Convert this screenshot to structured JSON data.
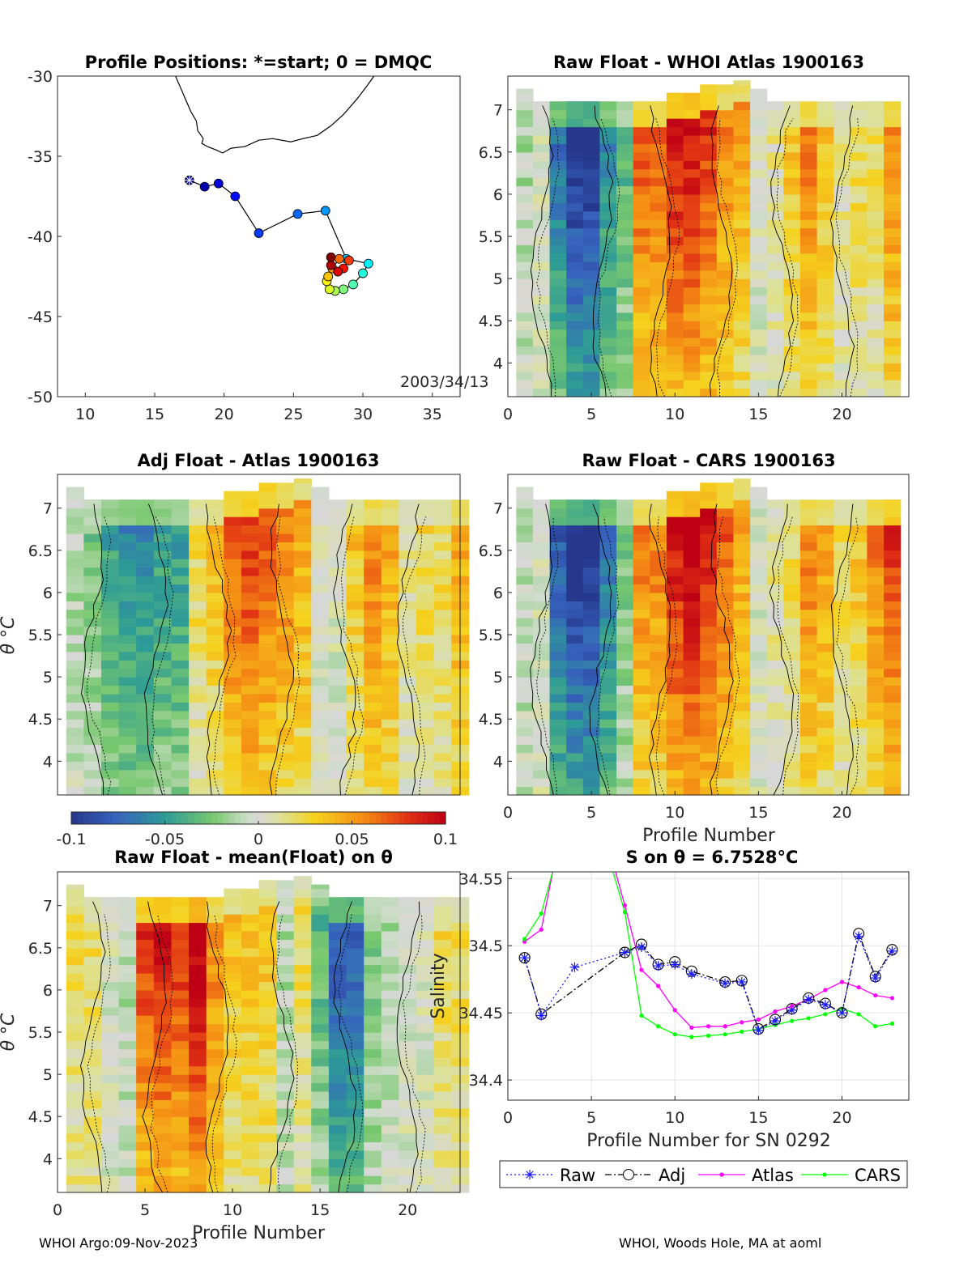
{
  "colors": {
    "raw": "#1a1aff",
    "adj": "#000000",
    "atlas": "#ff00ff",
    "cars": "#00ff00",
    "land": "#000000",
    "grid": "#e3e3e3"
  },
  "footer": {
    "left": "WHOI Argo:09-Nov-2023",
    "right": "WHOI, Woods Hole, MA at aoml"
  },
  "chart_data": [
    {
      "id": "positions",
      "type": "scatter",
      "title": "Profile Positions: *=start; 0 = DMQC",
      "annotation": "2003/34/13",
      "xlim": [
        8,
        37
      ],
      "ylim": [
        -50,
        -30
      ],
      "xticks": [
        "10",
        "15",
        "20",
        "25",
        "30",
        "35"
      ],
      "yticks": [
        "-30",
        "-35",
        "-40",
        "-45",
        "-50"
      ],
      "coast": [
        [
          16.5,
          -30
        ],
        [
          16.9,
          -30.8
        ],
        [
          17.3,
          -31.6
        ],
        [
          17.6,
          -32.2
        ],
        [
          18.0,
          -32.8
        ],
        [
          18.1,
          -33.4
        ],
        [
          18.5,
          -33.9
        ],
        [
          18.4,
          -34.2
        ],
        [
          18.8,
          -34.4
        ],
        [
          19.4,
          -34.6
        ],
        [
          19.9,
          -34.8
        ],
        [
          20.5,
          -34.5
        ],
        [
          21.5,
          -34.4
        ],
        [
          22.5,
          -34.0
        ],
        [
          23.5,
          -33.9
        ],
        [
          24.8,
          -34.1
        ],
        [
          25.7,
          -33.9
        ],
        [
          26.7,
          -33.7
        ],
        [
          27.7,
          -33.1
        ],
        [
          28.6,
          -32.4
        ],
        [
          29.6,
          -31.4
        ],
        [
          30.3,
          -30.6
        ],
        [
          30.8,
          -30
        ]
      ],
      "lon": [
        17.5,
        18.6,
        19.6,
        20.8,
        22.5,
        25.3,
        27.3,
        28.8,
        30.4,
        30.0,
        29.3,
        28.6,
        28.0,
        27.6,
        27.4,
        27.5,
        27.8,
        28.3,
        29.0,
        28.6,
        28.2,
        27.7,
        27.7
      ],
      "lat": [
        -36.5,
        -36.9,
        -36.7,
        -37.5,
        -39.8,
        -38.6,
        -38.4,
        -41.4,
        -41.7,
        -42.3,
        -43.0,
        -43.3,
        -43.4,
        -43.3,
        -42.8,
        -42.5,
        -42.0,
        -41.4,
        -41.5,
        -42.0,
        -42.2,
        -41.8,
        -41.3
      ],
      "start_marker": "*"
    },
    {
      "id": "raw_whoi",
      "type": "heatmap",
      "title": "Raw Float - WHOI Atlas  1900163",
      "xlim": [
        0,
        24
      ],
      "ylim": [
        3.6,
        7.4
      ],
      "xticks": [
        "0",
        "5",
        "10",
        "15",
        "20"
      ],
      "yticks": [
        "7",
        "6.5",
        "6",
        "5.5",
        "5",
        "4.5",
        "4"
      ],
      "xlabel": "",
      "ylabel": "",
      "seed": 11,
      "profiles_top": [
        7.25,
        7.1,
        7.1,
        7.1,
        7.1,
        7.1,
        7.1,
        7.1,
        7.1,
        7.2,
        7.2,
        7.3,
        7.3,
        7.35,
        7.25,
        7.1,
        7.1,
        7.1,
        7.1,
        7.1,
        7.1,
        7.1,
        7.1
      ],
      "profile_bias": [
        -0.01,
        0.0,
        -0.06,
        -0.09,
        -0.09,
        -0.05,
        -0.03,
        0.06,
        0.06,
        0.08,
        0.08,
        0.07,
        0.05,
        0.04,
        0.0,
        0.01,
        0.03,
        0.05,
        0.03,
        0.01,
        0.02,
        0.02,
        0.05
      ]
    },
    {
      "id": "adj_atlas",
      "type": "heatmap",
      "title": "Adj Float - Atlas  1900163",
      "xlim": [
        0,
        23
      ],
      "ylim": [
        3.6,
        7.4
      ],
      "xticks": [],
      "yticks": [
        "7",
        "6.5",
        "6",
        "5.5",
        "5",
        "4.5",
        "4"
      ],
      "xlabel": "",
      "ylabel": "θ °C",
      "seed": 23,
      "profiles_top": [
        7.25,
        7.1,
        7.1,
        7.1,
        7.1,
        7.1,
        7.1,
        7.1,
        7.1,
        7.2,
        7.2,
        7.3,
        7.3,
        7.35,
        7.25,
        7.1,
        7.1,
        7.1,
        7.1,
        7.1,
        7.1,
        7.1,
        7.1
      ],
      "profile_bias": [
        -0.01,
        -0.02,
        -0.04,
        -0.05,
        -0.05,
        -0.04,
        -0.04,
        0.02,
        0.03,
        0.06,
        0.07,
        0.06,
        0.05,
        0.04,
        0.0,
        0.0,
        0.03,
        0.05,
        0.04,
        0.01,
        0.02,
        0.02,
        0.04
      ]
    },
    {
      "id": "raw_cars",
      "type": "heatmap",
      "title": "Raw Float - CARS  1900163",
      "xlim": [
        0,
        24
      ],
      "ylim": [
        3.6,
        7.4
      ],
      "xticks": [
        "0",
        "5",
        "10",
        "15",
        "20"
      ],
      "yticks": [
        "7",
        "6.5",
        "6",
        "5.5",
        "5",
        "4.5",
        "4"
      ],
      "xlabel": "Profile Number",
      "ylabel": "",
      "seed": 37,
      "profiles_top": [
        7.25,
        7.1,
        7.1,
        7.1,
        7.1,
        7.1,
        7.1,
        7.1,
        7.1,
        7.2,
        7.2,
        7.3,
        7.3,
        7.35,
        7.25,
        7.1,
        7.1,
        7.1,
        7.1,
        7.1,
        7.1,
        7.1,
        7.1
      ],
      "profile_bias": [
        -0.01,
        0.0,
        -0.07,
        -0.09,
        -0.09,
        -0.06,
        -0.02,
        0.05,
        0.05,
        0.08,
        0.09,
        0.08,
        0.06,
        0.04,
        0.0,
        0.01,
        0.02,
        0.05,
        0.04,
        0.02,
        0.03,
        0.05,
        0.07
      ]
    },
    {
      "id": "colorbar",
      "type": "heatmap",
      "ticks": [
        "-0.1",
        "-0.05",
        "0",
        "0.05",
        "0.1"
      ],
      "range": [
        -0.1,
        0.1
      ]
    },
    {
      "id": "raw_mean",
      "type": "heatmap",
      "title": "Raw Float - mean(Float) on θ",
      "xlim": [
        0,
        23
      ],
      "ylim": [
        3.6,
        7.4
      ],
      "xticks": [
        "0",
        "5",
        "10",
        "15",
        "20"
      ],
      "yticks": [
        "7",
        "6.5",
        "6",
        "5.5",
        "5",
        "4.5",
        "4"
      ],
      "xlabel": "Profile Number",
      "ylabel": "θ °C",
      "seed": 51,
      "profiles_top": [
        7.25,
        7.1,
        7.1,
        7.1,
        7.1,
        7.1,
        7.1,
        7.1,
        7.1,
        7.2,
        7.2,
        7.3,
        7.3,
        7.35,
        7.25,
        7.1,
        7.1,
        7.1,
        7.1,
        7.1,
        7.1,
        7.1,
        7.1
      ],
      "profile_bias": [
        0.02,
        0.02,
        0.0,
        -0.01,
        0.07,
        0.08,
        0.07,
        0.09,
        0.05,
        0.03,
        0.03,
        0.03,
        -0.01,
        0.02,
        -0.03,
        -0.07,
        -0.07,
        -0.02,
        -0.01,
        0.0,
        0.0,
        0.02,
        0.02
      ]
    },
    {
      "id": "salinity",
      "type": "line",
      "title": "S on θ = 6.7528°C",
      "xlabel": "Profile Number for SN 0292",
      "ylabel": "Salinity",
      "xlim": [
        0,
        24
      ],
      "ylim": [
        34.385,
        34.555
      ],
      "xticks": [
        "0",
        "5",
        "10",
        "15",
        "20"
      ],
      "yticks": [
        "34.55",
        "34.5",
        "34.45",
        "34.4"
      ],
      "grid": true,
      "legend_position": "bottom",
      "series": [
        {
          "name": "Raw",
          "x": [
            1,
            2,
            4,
            7,
            8,
            9,
            10,
            11,
            13,
            14,
            15,
            16,
            17,
            18,
            19,
            20,
            21,
            22,
            23
          ],
          "values": [
            34.491,
            34.448,
            34.484,
            34.495,
            34.499,
            34.485,
            34.486,
            34.479,
            34.472,
            34.473,
            34.437,
            34.444,
            34.452,
            34.46,
            34.456,
            34.45,
            34.507,
            34.476,
            34.496
          ]
        },
        {
          "name": "Adj",
          "x": [
            1,
            2,
            7,
            8,
            9,
            10,
            11,
            13,
            14,
            15,
            16,
            17,
            18,
            19,
            20,
            21,
            22,
            23
          ],
          "values": [
            34.491,
            34.449,
            34.495,
            34.501,
            34.486,
            34.488,
            34.481,
            34.473,
            34.474,
            34.438,
            34.445,
            34.453,
            34.461,
            34.457,
            34.45,
            34.509,
            34.477,
            34.497
          ]
        },
        {
          "name": "Atlas",
          "x": [
            1,
            2,
            3,
            5,
            7,
            8,
            9,
            10,
            11,
            12,
            13,
            14,
            15,
            16,
            17,
            18,
            19,
            20,
            21,
            22,
            23
          ],
          "values": [
            34.503,
            34.512,
            34.575,
            34.62,
            34.53,
            34.482,
            34.47,
            34.452,
            34.439,
            34.44,
            34.44,
            34.443,
            34.445,
            34.451,
            34.455,
            34.46,
            34.467,
            34.473,
            34.469,
            34.463,
            34.461
          ]
        },
        {
          "name": "CARS",
          "x": [
            1,
            2,
            3,
            5,
            7,
            8,
            9,
            10,
            11,
            12,
            13,
            14,
            15,
            16,
            17,
            18,
            19,
            20,
            21,
            22,
            23
          ],
          "values": [
            34.505,
            34.524,
            34.57,
            34.61,
            34.525,
            34.448,
            34.44,
            34.434,
            34.432,
            34.433,
            34.434,
            34.436,
            34.438,
            34.441,
            34.444,
            34.446,
            34.449,
            34.453,
            34.449,
            34.44,
            34.442
          ]
        }
      ]
    }
  ]
}
